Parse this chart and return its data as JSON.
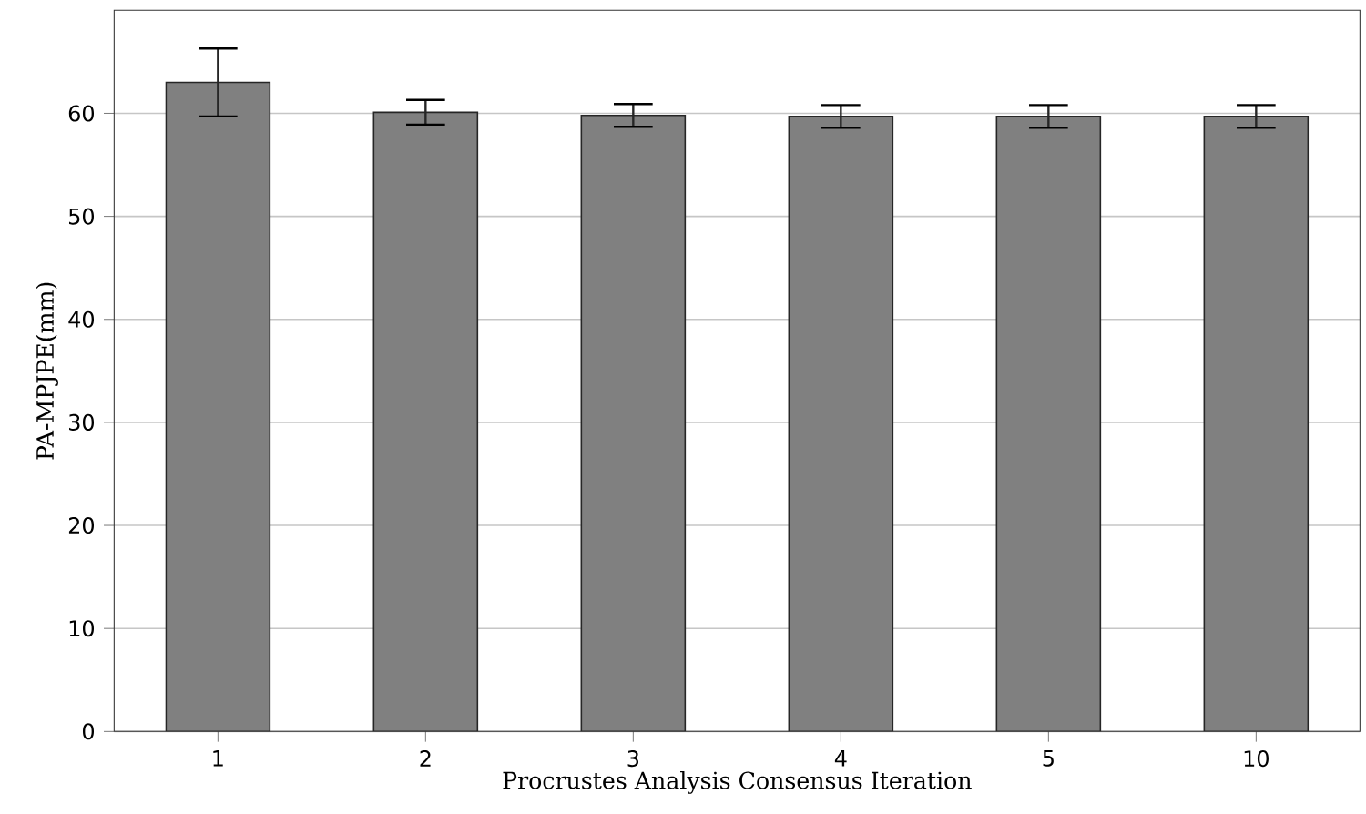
{
  "chart_data": {
    "type": "bar",
    "xlabel": "Procrustes Analysis Consensus Iteration",
    "ylabel": "PA-MPJPE(mm)",
    "categories": [
      "1",
      "2",
      "3",
      "4",
      "5",
      "10"
    ],
    "values": [
      63.0,
      60.1,
      59.8,
      59.7,
      59.7,
      59.7
    ],
    "errors": [
      3.3,
      1.2,
      1.1,
      1.1,
      1.1,
      1.1
    ],
    "color": "#808080",
    "ylim": [
      0,
      70
    ],
    "yticks": [
      0,
      10,
      20,
      30,
      40,
      50,
      60
    ],
    "grid": "y"
  }
}
